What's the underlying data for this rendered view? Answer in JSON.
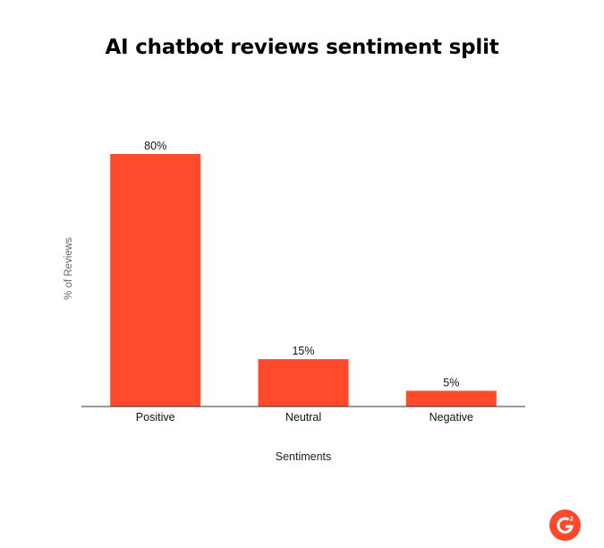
{
  "chart_data": {
    "type": "bar",
    "title": "AI chatbot reviews sentiment split",
    "xlabel": "Sentiments",
    "ylabel": "% of Reviews",
    "categories": [
      "Positive",
      "Neutral",
      "Negative"
    ],
    "values": [
      80,
      15,
      5
    ],
    "data_labels": [
      "80%",
      "15%",
      "5%"
    ],
    "ylim": [
      0,
      80
    ],
    "grid": false,
    "colors": {
      "bar": "#ff4a2b",
      "axis": "#333333",
      "logo": "#ff492c"
    }
  },
  "brand": {
    "logo_icon": "g2-logo-icon",
    "logo_text": "G²"
  }
}
